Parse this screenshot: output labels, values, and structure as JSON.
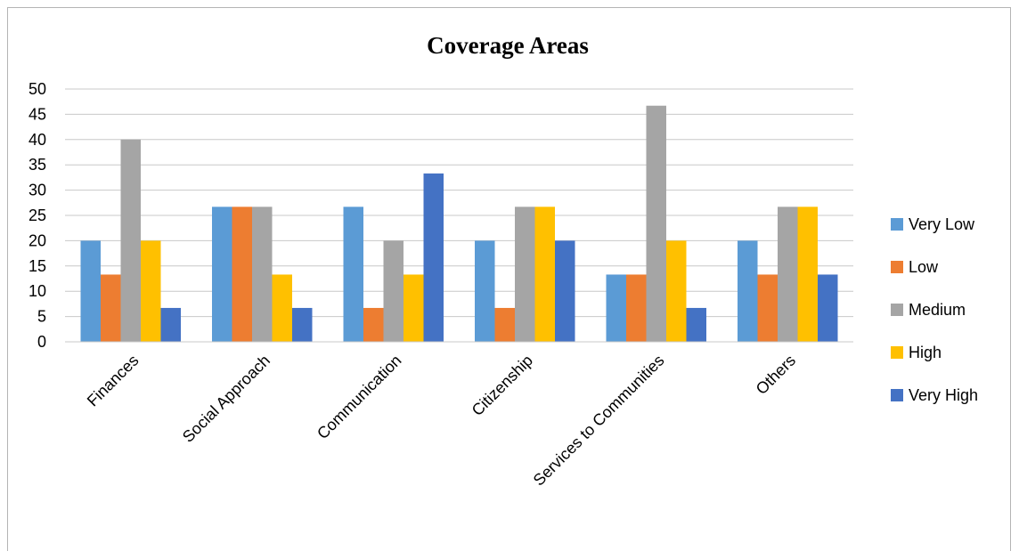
{
  "chart_data": {
    "type": "bar",
    "title": "Coverage Areas",
    "xlabel": "",
    "ylabel": "",
    "ylim": [
      0,
      50
    ],
    "yticks": [
      0,
      5,
      10,
      15,
      20,
      25,
      30,
      35,
      40,
      45,
      50
    ],
    "grid": true,
    "legend_position": "right",
    "categories": [
      "Finances",
      "Social Approach",
      "Communication",
      "Citizenship",
      "Services to Communities",
      "Others"
    ],
    "series": [
      {
        "name": "Very Low",
        "color": "#5b9bd5",
        "values": [
          20,
          26.7,
          26.7,
          20,
          13.3,
          20
        ]
      },
      {
        "name": "Low",
        "color": "#ed7d31",
        "values": [
          13.3,
          26.7,
          6.7,
          6.7,
          13.3,
          13.3
        ]
      },
      {
        "name": "Medium",
        "color": "#a5a5a5",
        "values": [
          40,
          26.7,
          20,
          26.7,
          46.7,
          26.7
        ]
      },
      {
        "name": "High",
        "color": "#ffc000",
        "values": [
          20,
          13.3,
          13.3,
          26.7,
          20,
          26.7
        ]
      },
      {
        "name": "Very High",
        "color": "#4472c4",
        "values": [
          6.7,
          6.7,
          33.3,
          20,
          6.7,
          13.3
        ]
      }
    ]
  }
}
